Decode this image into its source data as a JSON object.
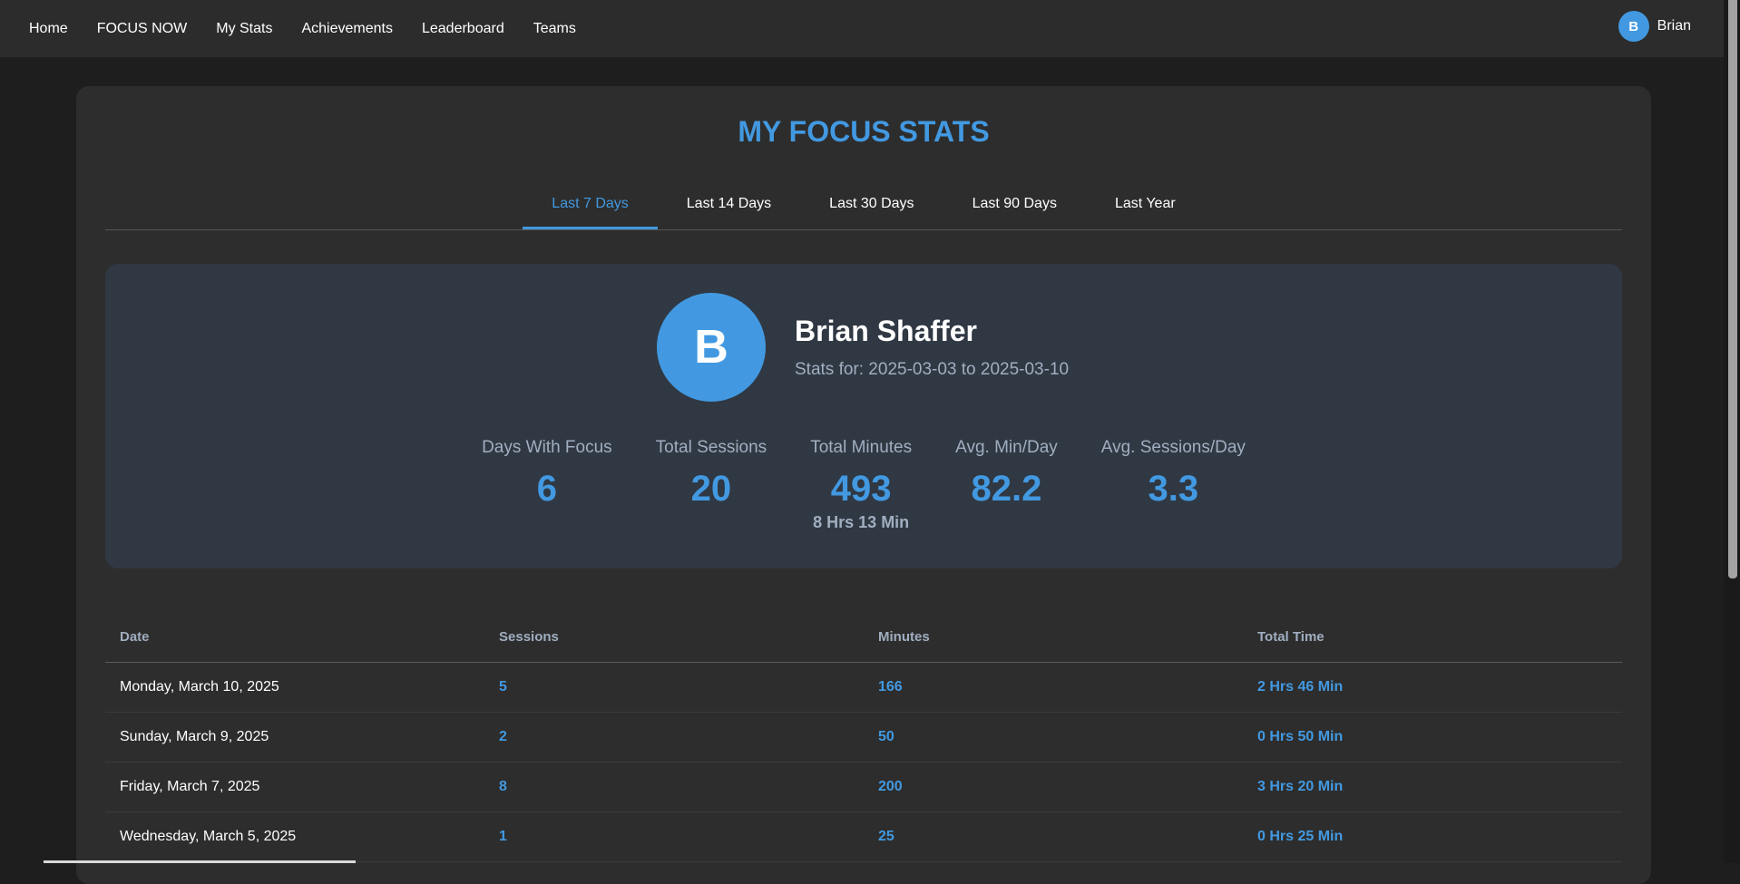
{
  "nav": {
    "links": [
      "Home",
      "FOCUS NOW",
      "My Stats",
      "Achievements",
      "Leaderboard",
      "Teams"
    ],
    "user_initial": "B",
    "user_name": "Brian"
  },
  "page": {
    "title": "MY FOCUS STATS",
    "tabs": [
      "Last 7 Days",
      "Last 14 Days",
      "Last 30 Days",
      "Last 90 Days",
      "Last Year"
    ],
    "active_tab": "Last 7 Days"
  },
  "profile": {
    "initial": "B",
    "name": "Brian Shaffer",
    "range": "Stats for: 2025-03-03 to 2025-03-10"
  },
  "stats": [
    {
      "label": "Days With Focus",
      "value": "6"
    },
    {
      "label": "Total Sessions",
      "value": "20"
    },
    {
      "label": "Total Minutes",
      "value": "493",
      "sub": "8 Hrs 13 Min"
    },
    {
      "label": "Avg. Min/Day",
      "value": "82.2"
    },
    {
      "label": "Avg. Sessions/Day",
      "value": "3.3"
    }
  ],
  "table": {
    "headers": [
      "Date",
      "Sessions",
      "Minutes",
      "Total Time"
    ],
    "rows": [
      [
        "Monday, March 10, 2025",
        "5",
        "166",
        "2 Hrs 46 Min"
      ],
      [
        "Sunday, March 9, 2025",
        "2",
        "50",
        "0 Hrs 50 Min"
      ],
      [
        "Friday, March 7, 2025",
        "8",
        "200",
        "3 Hrs 20 Min"
      ],
      [
        "Wednesday, March 5, 2025",
        "1",
        "25",
        "0 Hrs 25 Min"
      ]
    ]
  },
  "colors": {
    "accent": "#4299e1",
    "background": "#1e1e1e",
    "card": "#2d2d2d",
    "summary": "#303843"
  }
}
